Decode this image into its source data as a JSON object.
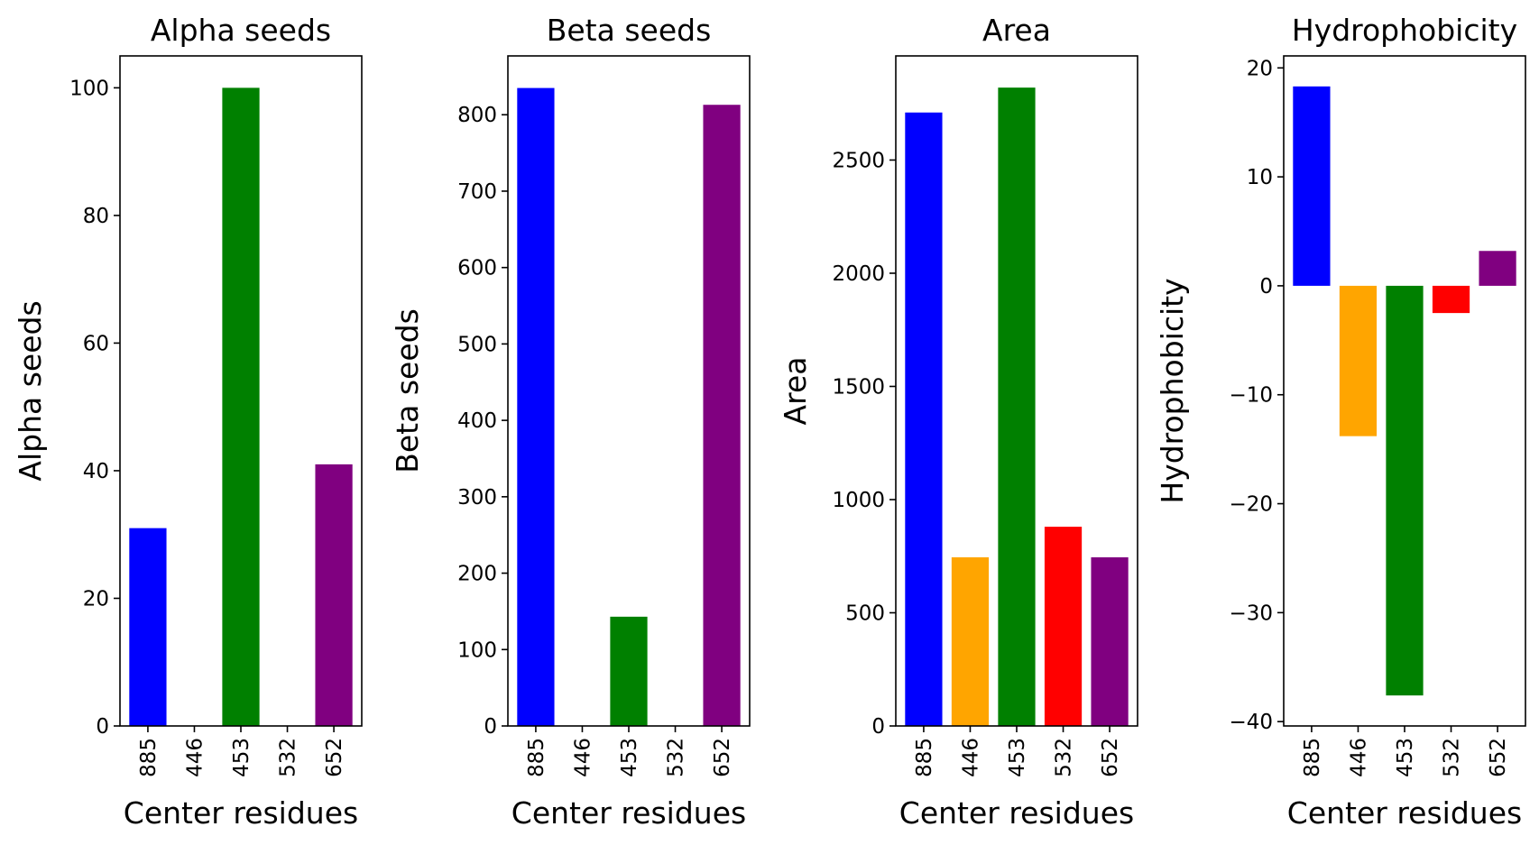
{
  "chart_data": [
    {
      "type": "bar",
      "title": "Alpha seeds",
      "xlabel": "Center residues",
      "ylabel": "Alpha seeds",
      "categories": [
        "885",
        "446",
        "453",
        "532",
        "652"
      ],
      "values": [
        31,
        0,
        100,
        0,
        41
      ],
      "colors": [
        "#0000ff",
        "#ffa500",
        "#008000",
        "#ff0000",
        "#800080"
      ],
      "ylim": [
        0,
        105
      ],
      "yticks": [
        0,
        20,
        40,
        60,
        80,
        100
      ],
      "ytick_labels": [
        "0",
        "20",
        "40",
        "60",
        "80",
        "100"
      ],
      "grid": false
    },
    {
      "type": "bar",
      "title": "Beta seeds",
      "xlabel": "Center residues",
      "ylabel": "Beta seeds",
      "categories": [
        "885",
        "446",
        "453",
        "532",
        "652"
      ],
      "values": [
        835,
        0,
        143,
        0,
        813
      ],
      "colors": [
        "#0000ff",
        "#ffa500",
        "#008000",
        "#ff0000",
        "#800080"
      ],
      "ylim": [
        0,
        877
      ],
      "yticks": [
        0,
        100,
        200,
        300,
        400,
        500,
        600,
        700,
        800
      ],
      "ytick_labels": [
        "0",
        "100",
        "200",
        "300",
        "400",
        "500",
        "600",
        "700",
        "800"
      ],
      "grid": false
    },
    {
      "type": "bar",
      "title": "Area",
      "xlabel": "Center residues",
      "ylabel": "Area",
      "categories": [
        "885",
        "446",
        "453",
        "532",
        "652"
      ],
      "values": [
        2710,
        745,
        2820,
        880,
        745
      ],
      "colors": [
        "#0000ff",
        "#ffa500",
        "#008000",
        "#ff0000",
        "#800080"
      ],
      "ylim": [
        0,
        2960
      ],
      "yticks": [
        0,
        500,
        1000,
        1500,
        2000,
        2500
      ],
      "ytick_labels": [
        "0",
        "500",
        "1000",
        "1500",
        "2000",
        "2500"
      ],
      "grid": false
    },
    {
      "type": "bar",
      "title": "Hydrophobicity",
      "xlabel": "Center residues",
      "ylabel": "Hydrophobicity",
      "categories": [
        "885",
        "446",
        "453",
        "532",
        "652"
      ],
      "values": [
        18.3,
        -13.8,
        -37.6,
        -2.5,
        3.2
      ],
      "colors": [
        "#0000ff",
        "#ffa500",
        "#008000",
        "#ff0000",
        "#800080"
      ],
      "ylim": [
        -40.4,
        21.1
      ],
      "yticks": [
        -40,
        -30,
        -20,
        -10,
        0,
        10,
        20
      ],
      "ytick_labels": [
        "−40",
        "−30",
        "−20",
        "−10",
        "0",
        "10",
        "20"
      ],
      "grid": false
    }
  ]
}
